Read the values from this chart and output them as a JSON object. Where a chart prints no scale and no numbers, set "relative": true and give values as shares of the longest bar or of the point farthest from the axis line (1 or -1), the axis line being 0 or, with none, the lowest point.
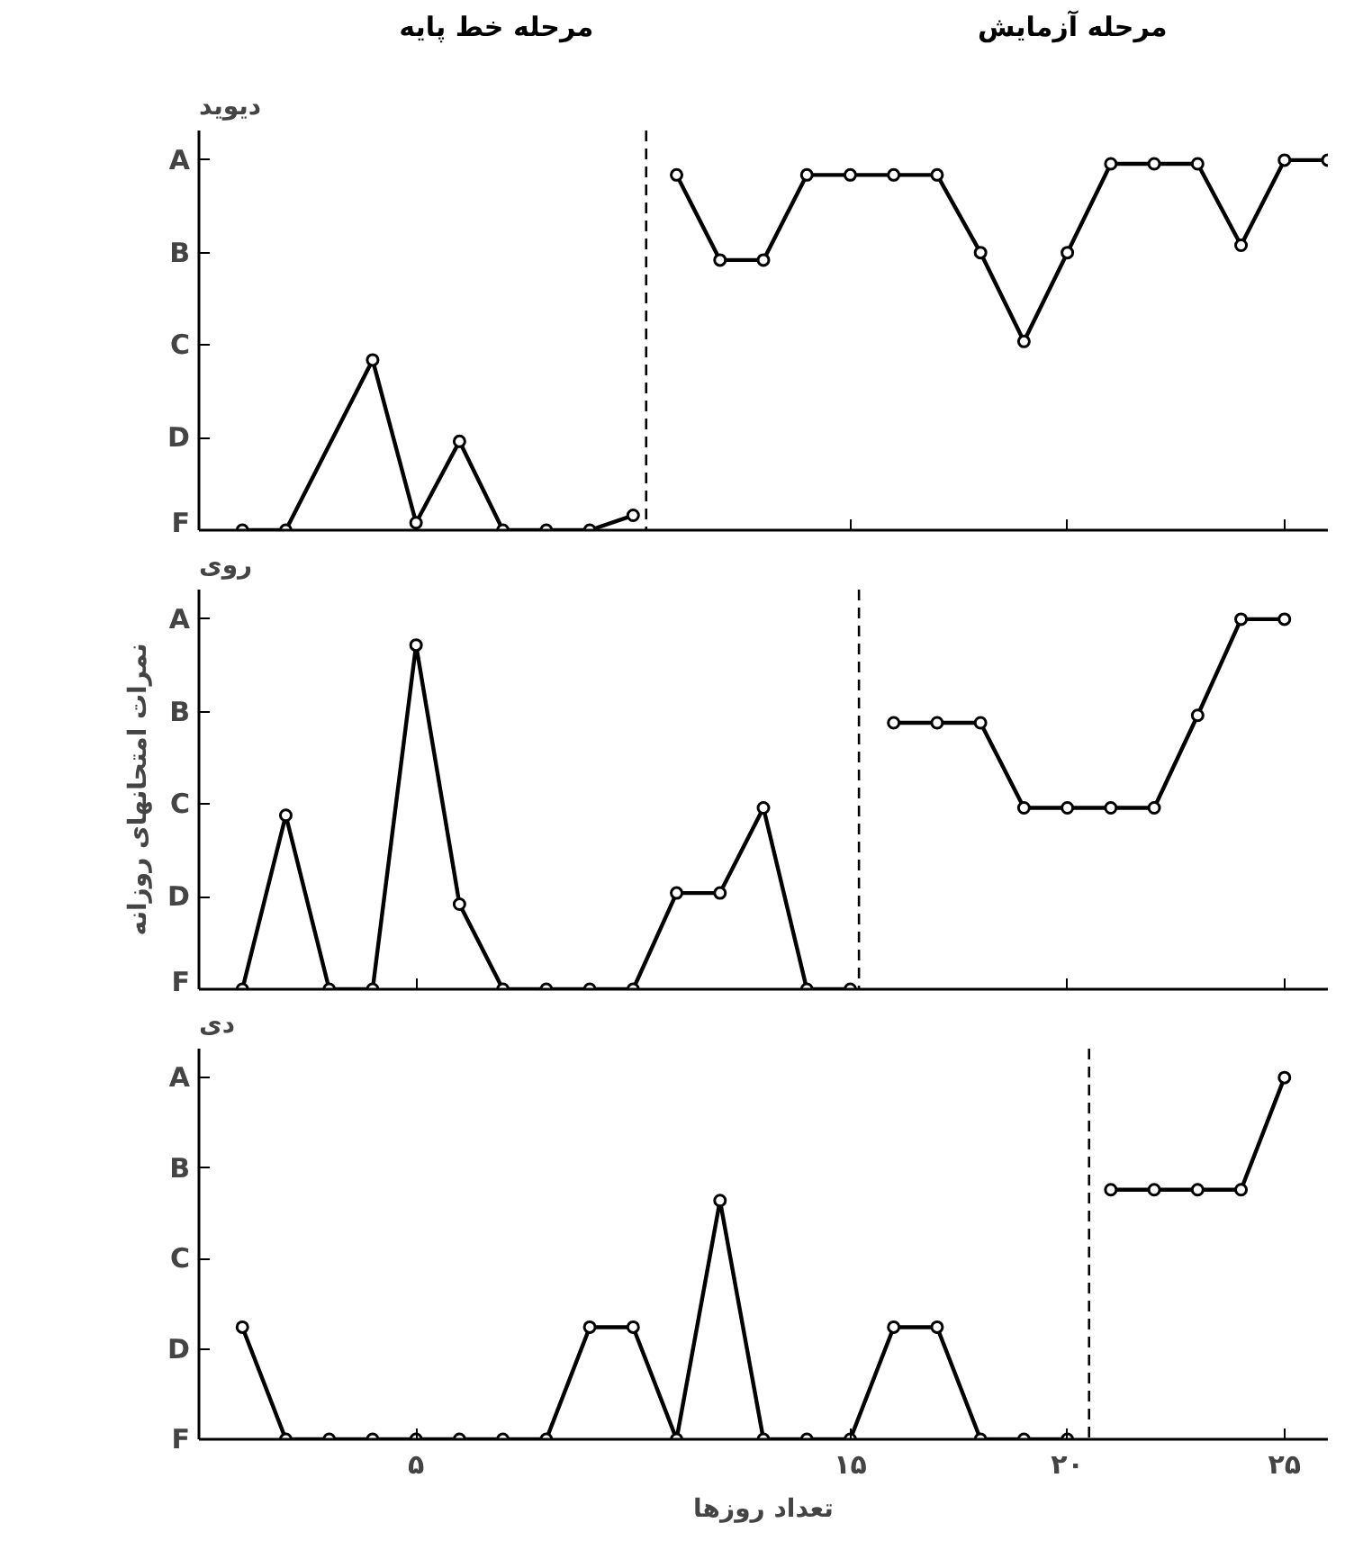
{
  "chart_data": [
    {
      "type": "line",
      "title": "دیوید",
      "relative": true,
      "xlim": [
        0,
        26
      ],
      "annotations": [
        "مرحله خط پایه",
        "مرحله آزمایش",
        "A",
        "B",
        "C",
        "D",
        "F"
      ],
      "xticks": [
        {
          "value": 15,
          "label": null
        },
        {
          "value": 20,
          "label": null
        },
        {
          "value": 25,
          "label": null
        }
      ],
      "tick_labels": false,
      "grid": false,
      "marker": "circle",
      "line_style": "solid",
      "ref_lines": [
        {
          "axis": "x",
          "value": 10.3,
          "label": null,
          "line_style": "dashed"
        }
      ],
      "series": [
        {
          "color": "#000000",
          "x": [
            1,
            2,
            4,
            5,
            6,
            7,
            8,
            9,
            10
          ],
          "values": [
            0,
            0,
            0.46,
            0.02,
            0.24,
            0,
            0,
            0,
            0.04
          ]
        },
        {
          "color": "#000000",
          "x": [
            11,
            12,
            13,
            14,
            15,
            16,
            17,
            18,
            19,
            20,
            21,
            22,
            23,
            24,
            25,
            26
          ],
          "values": [
            0.96,
            0.73,
            0.73,
            0.96,
            0.96,
            0.96,
            0.96,
            0.75,
            0.51,
            0.75,
            0.99,
            0.99,
            0.99,
            0.77,
            1,
            1
          ]
        }
      ]
    },
    {
      "type": "line",
      "title": "روی",
      "ylabel": "نمرات امتحانهای روزانه",
      "relative": true,
      "xlim": [
        0,
        26
      ],
      "annotations": [
        "A",
        "B",
        "C",
        "D",
        "F"
      ],
      "xticks": [
        {
          "value": 5,
          "label": null
        },
        {
          "value": 20,
          "label": null
        },
        {
          "value": 25,
          "label": null
        }
      ],
      "tick_labels": false,
      "grid": false,
      "marker": "circle",
      "line_style": "solid",
      "ref_lines": [
        {
          "axis": "x",
          "value": 15.2,
          "label": null,
          "line_style": "dashed"
        }
      ],
      "series": [
        {
          "color": "#000000",
          "x": [
            1,
            2,
            3,
            4,
            5,
            6,
            7,
            8,
            9,
            10,
            11,
            12,
            13,
            14,
            15
          ],
          "values": [
            0,
            0.47,
            0,
            0,
            0.93,
            0.23,
            0,
            0,
            0,
            0,
            0.26,
            0.26,
            0.49,
            0,
            0
          ]
        },
        {
          "color": "#000000",
          "x": [
            16,
            17,
            18,
            19,
            20,
            21,
            22,
            23,
            24,
            25
          ],
          "values": [
            0.72,
            0.72,
            0.72,
            0.49,
            0.49,
            0.49,
            0.49,
            0.74,
            1,
            1
          ]
        }
      ]
    },
    {
      "type": "line",
      "title": "دی",
      "xlabel": "تعداد روزها",
      "relative": true,
      "xlim": [
        0,
        26
      ],
      "annotations": [
        "A",
        "B",
        "C",
        "D",
        "F"
      ],
      "xticks": [
        {
          "value": 5,
          "label": "۵"
        },
        {
          "value": 15,
          "label": "۱۵"
        },
        {
          "value": 20,
          "label": "۲۰"
        },
        {
          "value": 25,
          "label": "۲۵"
        }
      ],
      "tick_labels": "x",
      "grid": false,
      "marker": "circle",
      "line_style": "solid",
      "ref_lines": [
        {
          "axis": "x",
          "value": 20.5,
          "label": null,
          "line_style": "dashed"
        }
      ],
      "series": [
        {
          "color": "#000000",
          "x": [
            1,
            2,
            3,
            4,
            5,
            6,
            7,
            8,
            9,
            10,
            11,
            12,
            13,
            14,
            15,
            16,
            17,
            18,
            19,
            20
          ],
          "values": [
            0.31,
            0,
            0,
            0,
            0,
            0,
            0,
            0,
            0.31,
            0.31,
            0,
            0.66,
            0,
            0,
            0,
            0.31,
            0.31,
            0,
            0,
            0
          ]
        },
        {
          "color": "#000000",
          "x": [
            21,
            22,
            23,
            24,
            25
          ],
          "values": [
            0.69,
            0.69,
            0.69,
            0.69,
            1
          ]
        }
      ]
    }
  ]
}
